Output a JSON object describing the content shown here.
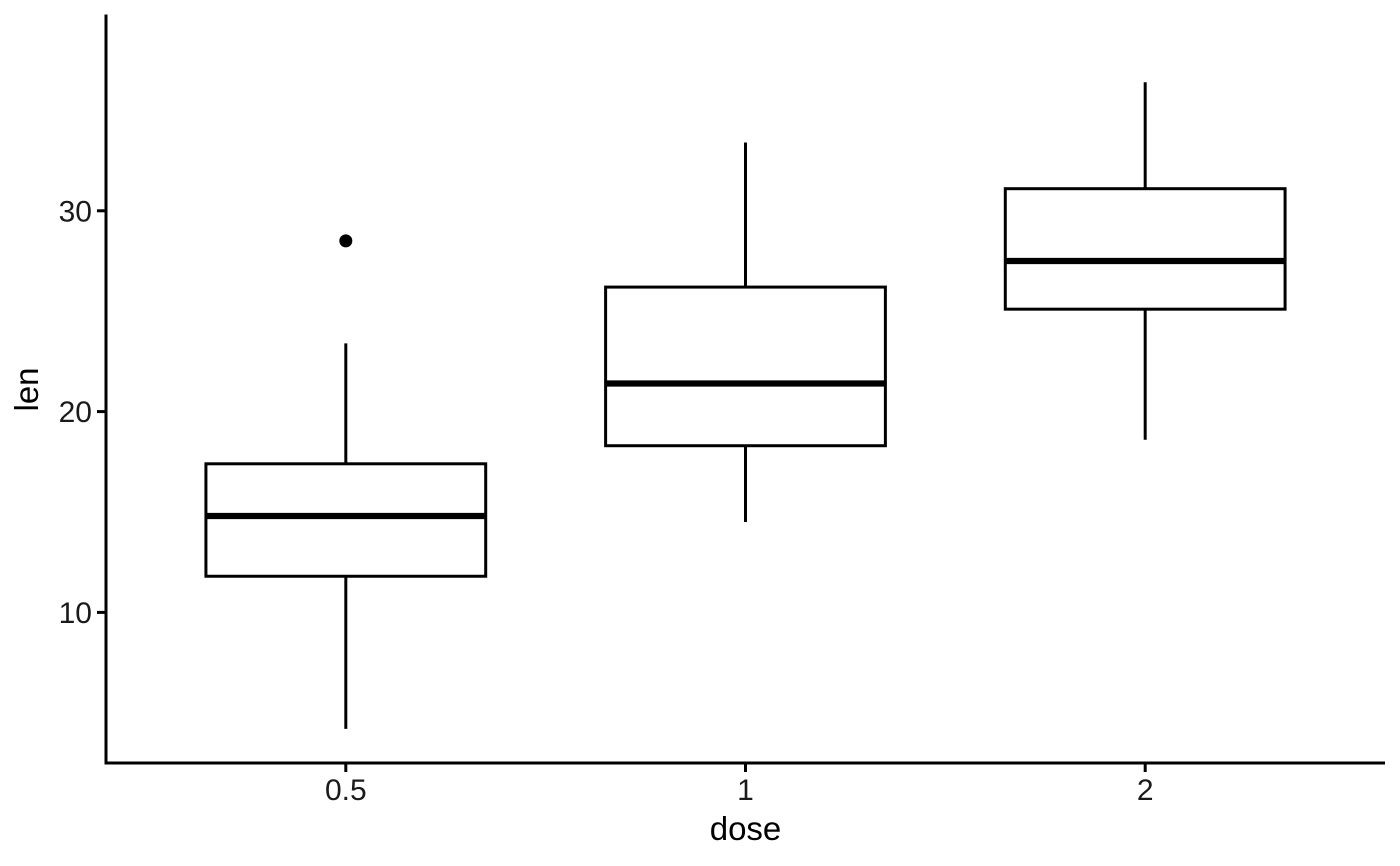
{
  "chart_data": {
    "type": "boxplot",
    "title": "",
    "xlabel": "dose",
    "ylabel": "len",
    "categories": [
      "0.5",
      "1",
      "2"
    ],
    "positions": [
      1,
      2,
      3
    ],
    "xlim": [
      0.4,
      3.6
    ],
    "ylim": [
      2.5,
      39.7
    ],
    "y_ticks": [
      10,
      20,
      30
    ],
    "box_width": 0.7,
    "grid": false,
    "legend_position": "none",
    "series": [
      {
        "category": "0.5",
        "whisker_low": 4.2,
        "q1": 11.8,
        "median": 14.8,
        "q3": 17.4,
        "whisker_high": 23.4,
        "outliers": [
          28.5
        ]
      },
      {
        "category": "1",
        "whisker_low": 14.5,
        "q1": 18.3,
        "median": 21.4,
        "q3": 26.2,
        "whisker_high": 33.4,
        "outliers": []
      },
      {
        "category": "2",
        "whisker_low": 18.6,
        "q1": 25.1,
        "median": 27.5,
        "q3": 31.1,
        "whisker_high": 36.4,
        "outliers": []
      }
    ],
    "colors": {
      "line": "#000000",
      "box_fill": "#ffffff",
      "background": "#ffffff",
      "tick_text": "#1a1a1a"
    }
  }
}
